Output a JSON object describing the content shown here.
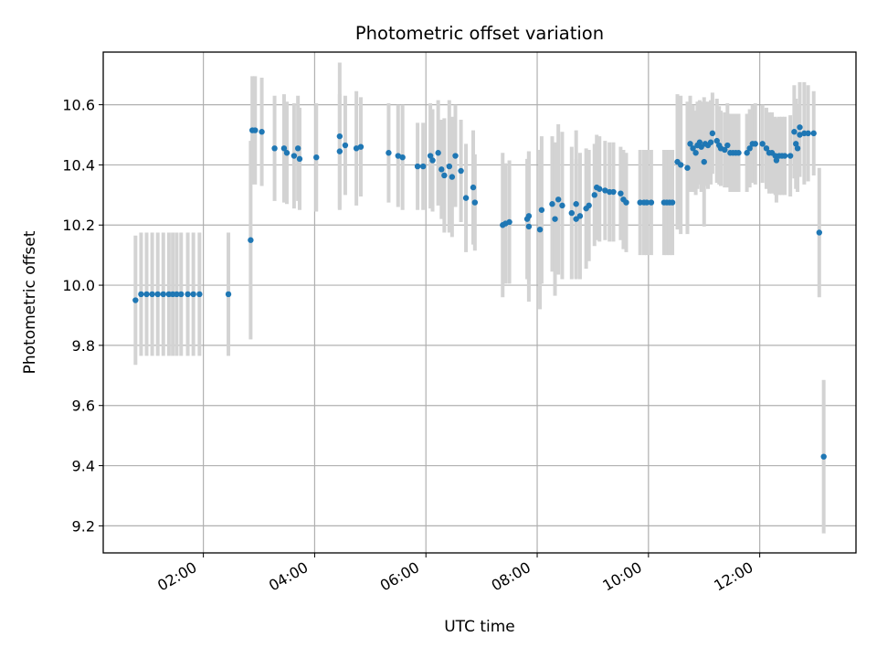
{
  "chart_data": {
    "type": "scatter",
    "title": "Photometric offset variation",
    "xlabel": "UTC time",
    "ylabel": "Photometric offset",
    "x_unit": "hours (UTC)",
    "xlim": [
      0.2,
      13.73
    ],
    "ylim": [
      9.11,
      10.775
    ],
    "x_ticks": [
      {
        "value": 2,
        "label": "02:00"
      },
      {
        "value": 4,
        "label": "04:00"
      },
      {
        "value": 6,
        "label": "06:00"
      },
      {
        "value": 8,
        "label": "08:00"
      },
      {
        "value": 10,
        "label": "10:00"
      },
      {
        "value": 12,
        "label": "12:00"
      }
    ],
    "y_ticks": [
      {
        "value": 9.2,
        "label": "9.2"
      },
      {
        "value": 9.4,
        "label": "9.4"
      },
      {
        "value": 9.6,
        "label": "9.6"
      },
      {
        "value": 9.8,
        "label": "9.8"
      },
      {
        "value": 10.0,
        "label": "10.0"
      },
      {
        "value": 10.2,
        "label": "10.2"
      },
      {
        "value": 10.4,
        "label": "10.4"
      },
      {
        "value": 10.6,
        "label": "10.6"
      }
    ],
    "grid": true,
    "marker_color": "#1f77b4",
    "errorbar_color": "#d3d3d3",
    "series": [
      {
        "name": "Photometric offset",
        "points": [
          {
            "x": 0.78,
            "y": 9.95,
            "err": 0.215
          },
          {
            "x": 0.88,
            "y": 9.97,
            "err": 0.205
          },
          {
            "x": 0.98,
            "y": 9.97,
            "err": 0.205
          },
          {
            "x": 1.08,
            "y": 9.97,
            "err": 0.205
          },
          {
            "x": 1.18,
            "y": 9.97,
            "err": 0.205
          },
          {
            "x": 1.28,
            "y": 9.97,
            "err": 0.205
          },
          {
            "x": 1.38,
            "y": 9.97,
            "err": 0.205
          },
          {
            "x": 1.45,
            "y": 9.97,
            "err": 0.205
          },
          {
            "x": 1.52,
            "y": 9.97,
            "err": 0.205
          },
          {
            "x": 1.6,
            "y": 9.97,
            "err": 0.205
          },
          {
            "x": 1.72,
            "y": 9.97,
            "err": 0.205
          },
          {
            "x": 1.82,
            "y": 9.97,
            "err": 0.205
          },
          {
            "x": 1.93,
            "y": 9.97,
            "err": 0.205
          },
          {
            "x": 2.45,
            "y": 9.97,
            "err": 0.205
          },
          {
            "x": 2.85,
            "y": 10.15,
            "err": 0.33
          },
          {
            "x": 2.88,
            "y": 10.515,
            "err": 0.18
          },
          {
            "x": 2.93,
            "y": 10.515,
            "err": 0.18
          },
          {
            "x": 3.05,
            "y": 10.51,
            "err": 0.18
          },
          {
            "x": 3.28,
            "y": 10.455,
            "err": 0.175
          },
          {
            "x": 3.45,
            "y": 10.455,
            "err": 0.18
          },
          {
            "x": 3.5,
            "y": 10.44,
            "err": 0.17
          },
          {
            "x": 3.63,
            "y": 10.43,
            "err": 0.175
          },
          {
            "x": 3.7,
            "y": 10.455,
            "err": 0.175
          },
          {
            "x": 3.73,
            "y": 10.42,
            "err": 0.17
          },
          {
            "x": 4.03,
            "y": 10.425,
            "err": 0.18
          },
          {
            "x": 4.45,
            "y": 10.495,
            "err": 0.245
          },
          {
            "x": 4.45,
            "y": 10.445,
            "err": 0.19
          },
          {
            "x": 4.55,
            "y": 10.465,
            "err": 0.165
          },
          {
            "x": 4.75,
            "y": 10.455,
            "err": 0.19
          },
          {
            "x": 4.83,
            "y": 10.46,
            "err": 0.165
          },
          {
            "x": 5.33,
            "y": 10.44,
            "err": 0.165
          },
          {
            "x": 5.5,
            "y": 10.43,
            "err": 0.17
          },
          {
            "x": 5.58,
            "y": 10.425,
            "err": 0.175
          },
          {
            "x": 5.85,
            "y": 10.395,
            "err": 0.145
          },
          {
            "x": 5.95,
            "y": 10.395,
            "err": 0.145
          },
          {
            "x": 6.08,
            "y": 10.43,
            "err": 0.175
          },
          {
            "x": 6.12,
            "y": 10.415,
            "err": 0.17
          },
          {
            "x": 6.22,
            "y": 10.44,
            "err": 0.175
          },
          {
            "x": 6.28,
            "y": 10.385,
            "err": 0.165
          },
          {
            "x": 6.33,
            "y": 10.365,
            "err": 0.19
          },
          {
            "x": 6.42,
            "y": 10.395,
            "err": 0.22
          },
          {
            "x": 6.47,
            "y": 10.36,
            "err": 0.2
          },
          {
            "x": 6.53,
            "y": 10.43,
            "err": 0.17
          },
          {
            "x": 6.63,
            "y": 10.38,
            "err": 0.17
          },
          {
            "x": 6.72,
            "y": 10.29,
            "err": 0.18
          },
          {
            "x": 6.85,
            "y": 10.325,
            "err": 0.19
          },
          {
            "x": 6.88,
            "y": 10.275,
            "err": 0.16
          },
          {
            "x": 7.38,
            "y": 10.2,
            "err": 0.24
          },
          {
            "x": 7.43,
            "y": 10.205,
            "err": 0.2
          },
          {
            "x": 7.5,
            "y": 10.21,
            "err": 0.205
          },
          {
            "x": 7.82,
            "y": 10.22,
            "err": 0.2
          },
          {
            "x": 7.85,
            "y": 10.23,
            "err": 0.215
          },
          {
            "x": 7.85,
            "y": 10.195,
            "err": 0.25
          },
          {
            "x": 8.05,
            "y": 10.185,
            "err": 0.265
          },
          {
            "x": 8.08,
            "y": 10.25,
            "err": 0.245
          },
          {
            "x": 8.27,
            "y": 10.27,
            "err": 0.225
          },
          {
            "x": 8.32,
            "y": 10.22,
            "err": 0.255
          },
          {
            "x": 8.38,
            "y": 10.285,
            "err": 0.25
          },
          {
            "x": 8.45,
            "y": 10.265,
            "err": 0.245
          },
          {
            "x": 8.62,
            "y": 10.24,
            "err": 0.22
          },
          {
            "x": 8.7,
            "y": 10.27,
            "err": 0.245
          },
          {
            "x": 8.7,
            "y": 10.22,
            "err": 0.2
          },
          {
            "x": 8.77,
            "y": 10.23,
            "err": 0.21
          },
          {
            "x": 8.88,
            "y": 10.255,
            "err": 0.2
          },
          {
            "x": 8.93,
            "y": 10.265,
            "err": 0.185
          },
          {
            "x": 9.03,
            "y": 10.3,
            "err": 0.17
          },
          {
            "x": 9.07,
            "y": 10.325,
            "err": 0.175
          },
          {
            "x": 9.12,
            "y": 10.32,
            "err": 0.175
          },
          {
            "x": 9.22,
            "y": 10.315,
            "err": 0.165
          },
          {
            "x": 9.3,
            "y": 10.31,
            "err": 0.165
          },
          {
            "x": 9.37,
            "y": 10.31,
            "err": 0.165
          },
          {
            "x": 9.5,
            "y": 10.305,
            "err": 0.155
          },
          {
            "x": 9.55,
            "y": 10.285,
            "err": 0.165
          },
          {
            "x": 9.6,
            "y": 10.275,
            "err": 0.165
          },
          {
            "x": 9.85,
            "y": 10.275,
            "err": 0.175
          },
          {
            "x": 9.92,
            "y": 10.275,
            "err": 0.175
          },
          {
            "x": 9.97,
            "y": 10.275,
            "err": 0.175
          },
          {
            "x": 10.05,
            "y": 10.275,
            "err": 0.175
          },
          {
            "x": 10.28,
            "y": 10.275,
            "err": 0.175
          },
          {
            "x": 10.33,
            "y": 10.275,
            "err": 0.175
          },
          {
            "x": 10.38,
            "y": 10.275,
            "err": 0.175
          },
          {
            "x": 10.43,
            "y": 10.275,
            "err": 0.175
          },
          {
            "x": 10.52,
            "y": 10.41,
            "err": 0.225
          },
          {
            "x": 10.58,
            "y": 10.4,
            "err": 0.23
          },
          {
            "x": 10.7,
            "y": 10.39,
            "err": 0.22
          },
          {
            "x": 10.75,
            "y": 10.47,
            "err": 0.16
          },
          {
            "x": 10.8,
            "y": 10.455,
            "err": 0.145
          },
          {
            "x": 10.85,
            "y": 10.44,
            "err": 0.14
          },
          {
            "x": 10.88,
            "y": 10.465,
            "err": 0.145
          },
          {
            "x": 10.92,
            "y": 10.475,
            "err": 0.14
          },
          {
            "x": 10.95,
            "y": 10.46,
            "err": 0.15
          },
          {
            "x": 11.0,
            "y": 10.41,
            "err": 0.215
          },
          {
            "x": 11.02,
            "y": 10.47,
            "err": 0.14
          },
          {
            "x": 11.07,
            "y": 10.465,
            "err": 0.145
          },
          {
            "x": 11.12,
            "y": 10.475,
            "err": 0.14
          },
          {
            "x": 11.15,
            "y": 10.505,
            "err": 0.135
          },
          {
            "x": 11.23,
            "y": 10.48,
            "err": 0.14
          },
          {
            "x": 11.27,
            "y": 10.465,
            "err": 0.13
          },
          {
            "x": 11.3,
            "y": 10.455,
            "err": 0.125
          },
          {
            "x": 11.37,
            "y": 10.45,
            "err": 0.125
          },
          {
            "x": 11.42,
            "y": 10.465,
            "err": 0.14
          },
          {
            "x": 11.47,
            "y": 10.44,
            "err": 0.13
          },
          {
            "x": 11.52,
            "y": 10.44,
            "err": 0.13
          },
          {
            "x": 11.57,
            "y": 10.44,
            "err": 0.13
          },
          {
            "x": 11.62,
            "y": 10.44,
            "err": 0.13
          },
          {
            "x": 11.77,
            "y": 10.44,
            "err": 0.13
          },
          {
            "x": 11.82,
            "y": 10.455,
            "err": 0.13
          },
          {
            "x": 11.87,
            "y": 10.47,
            "err": 0.13
          },
          {
            "x": 11.92,
            "y": 10.47,
            "err": 0.135
          },
          {
            "x": 12.05,
            "y": 10.47,
            "err": 0.13
          },
          {
            "x": 12.12,
            "y": 10.455,
            "err": 0.135
          },
          {
            "x": 12.17,
            "y": 10.44,
            "err": 0.135
          },
          {
            "x": 12.22,
            "y": 10.44,
            "err": 0.135
          },
          {
            "x": 12.28,
            "y": 10.43,
            "err": 0.13
          },
          {
            "x": 12.3,
            "y": 10.415,
            "err": 0.14
          },
          {
            "x": 12.35,
            "y": 10.43,
            "err": 0.13
          },
          {
            "x": 12.4,
            "y": 10.43,
            "err": 0.13
          },
          {
            "x": 12.45,
            "y": 10.43,
            "err": 0.13
          },
          {
            "x": 12.55,
            "y": 10.43,
            "err": 0.135
          },
          {
            "x": 12.62,
            "y": 10.51,
            "err": 0.155
          },
          {
            "x": 12.65,
            "y": 10.47,
            "err": 0.15
          },
          {
            "x": 12.68,
            "y": 10.455,
            "err": 0.145
          },
          {
            "x": 12.72,
            "y": 10.525,
            "err": 0.15
          },
          {
            "x": 12.72,
            "y": 10.5,
            "err": 0.14
          },
          {
            "x": 12.8,
            "y": 10.505,
            "err": 0.17
          },
          {
            "x": 12.87,
            "y": 10.505,
            "err": 0.16
          },
          {
            "x": 12.97,
            "y": 10.505,
            "err": 0.14
          },
          {
            "x": 13.07,
            "y": 10.175,
            "err": 0.215
          },
          {
            "x": 13.15,
            "y": 9.43,
            "err": 0.255
          }
        ]
      }
    ]
  }
}
